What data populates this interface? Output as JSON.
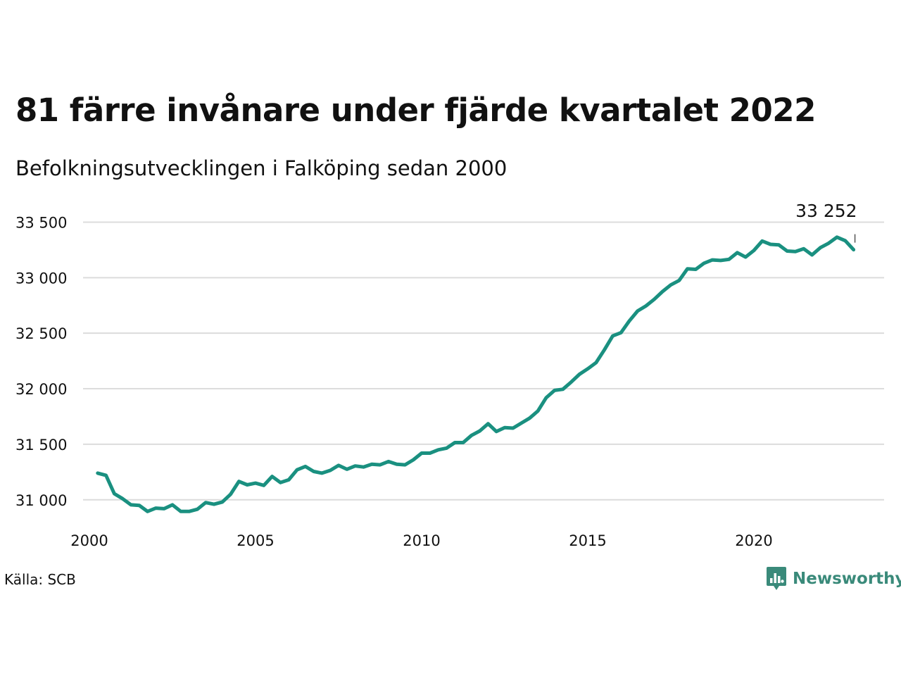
{
  "title": "81 färre invånare under fjärde kvartalet 2022",
  "subtitle": "Befolkningsutvecklingen i Falköping sedan 2000",
  "source": "Källa: SCB",
  "brand": {
    "name": "Newsworthy",
    "logo_icon": "newsworthy-chart-icon",
    "color": "#3a8a7a"
  },
  "chart_data": {
    "type": "line",
    "title": "81 färre invånare under fjärde kvartalet 2022",
    "subtitle": "Befolkningsutvecklingen i Falköping sedan 2000",
    "xlabel": "",
    "ylabel": "",
    "line_color": "#1a9080",
    "grid": true,
    "xlim": [
      2000,
      2023.75
    ],
    "ylim": [
      30840,
      33560
    ],
    "x_ticks": [
      2000,
      2005,
      2010,
      2015,
      2020
    ],
    "x_tick_labels": [
      "2000",
      "2005",
      "2010",
      "2015",
      "2020"
    ],
    "y_ticks": [
      31000,
      31500,
      32000,
      32500,
      33000,
      33500
    ],
    "y_tick_labels": [
      "31 000",
      "31 500",
      "32 000",
      "32 500",
      "33 000",
      "33 500"
    ],
    "end_label": "33 252",
    "series": [
      {
        "name": "",
        "x": [
          2000.25,
          2000.5,
          2000.75,
          2001,
          2001.25,
          2001.5,
          2001.75,
          2002,
          2002.25,
          2002.5,
          2002.75,
          2003,
          2003.25,
          2003.5,
          2003.75,
          2004,
          2004.25,
          2004.5,
          2004.75,
          2005,
          2005.25,
          2005.5,
          2005.75,
          2006,
          2006.25,
          2006.5,
          2006.75,
          2007,
          2007.25,
          2007.5,
          2007.75,
          2008,
          2008.25,
          2008.5,
          2008.75,
          2009,
          2009.25,
          2009.5,
          2009.75,
          2010,
          2010.25,
          2010.5,
          2010.75,
          2011,
          2011.25,
          2011.5,
          2011.75,
          2012,
          2012.25,
          2012.5,
          2012.75,
          2013,
          2013.25,
          2013.5,
          2013.75,
          2014,
          2014.25,
          2014.5,
          2014.75,
          2015,
          2015.25,
          2015.5,
          2015.75,
          2016,
          2016.25,
          2016.5,
          2016.75,
          2017,
          2017.25,
          2017.5,
          2017.75,
          2018,
          2018.25,
          2018.5,
          2018.75,
          2019,
          2019.25,
          2019.5,
          2019.75,
          2020,
          2020.25,
          2020.5,
          2020.75,
          2021,
          2021.25,
          2021.5,
          2021.75,
          2022,
          2022.25,
          2022.5,
          2022.75,
          2023
        ],
        "y": [
          31240,
          31220,
          31055,
          31010,
          30955,
          30950,
          30895,
          30925,
          30920,
          30955,
          30895,
          30895,
          30915,
          30975,
          30960,
          30980,
          31050,
          31165,
          31135,
          31150,
          31130,
          31210,
          31155,
          31180,
          31270,
          31300,
          31255,
          31240,
          31265,
          31310,
          31275,
          31305,
          31295,
          31320,
          31315,
          31345,
          31320,
          31315,
          31360,
          31420,
          31420,
          31450,
          31465,
          31515,
          31515,
          31580,
          31620,
          31685,
          31615,
          31650,
          31645,
          31690,
          31735,
          31800,
          31920,
          31985,
          31995,
          32060,
          32130,
          32180,
          32235,
          32350,
          32475,
          32505,
          32610,
          32700,
          32745,
          32805,
          32875,
          32935,
          32975,
          33080,
          33075,
          33130,
          33160,
          33155,
          33165,
          33225,
          33185,
          33245,
          33330,
          33300,
          33295,
          33240,
          33235,
          33260,
          33205,
          33270,
          33310,
          33365,
          33333,
          33252
        ]
      }
    ]
  }
}
